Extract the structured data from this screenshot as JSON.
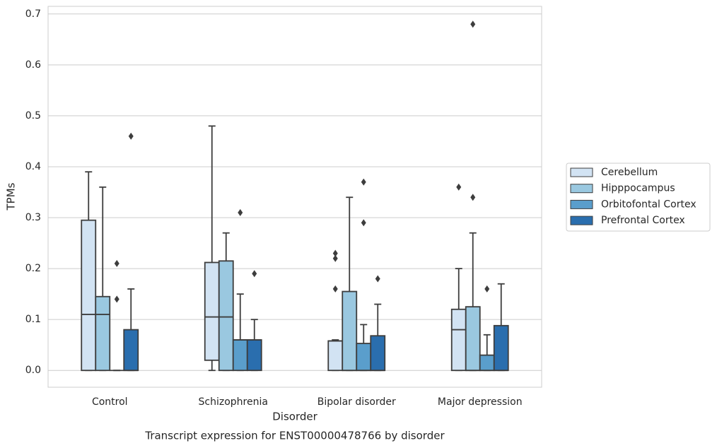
{
  "chart_data": {
    "type": "box",
    "title": "Transcript expression for ENST00000478766 by disorder",
    "xlabel": "Disorder",
    "ylabel": "TPMs",
    "categories": [
      "Control",
      "Schizophrenia",
      "Bipolar disorder",
      "Major depression"
    ],
    "ylim": [
      -0.033,
      0.715
    ],
    "yticks": [
      {
        "value": 0,
        "label": "0.0"
      },
      0.1,
      0.2,
      0.3,
      0.4,
      0.5,
      0.6,
      0.7
    ],
    "grid": true,
    "legend": "right",
    "edge_color": "#3d3d3d",
    "series": [
      {
        "name": "Cerebellum",
        "color": "#d2e3f3",
        "values": [
          {
            "min": 0,
            "q1": 0,
            "median": 0.11,
            "q3": 0.295,
            "max": 0.39,
            "outliers": []
          },
          {
            "min": 0,
            "q1": 0.02,
            "median": 0.105,
            "q3": 0.212,
            "max": 0.48,
            "outliers": []
          },
          {
            "min": 0,
            "q1": 0,
            "median": 0.058,
            "q3": 0.058,
            "max": 0.06,
            "outliers": [
              0.23,
              0.22,
              0.16
            ]
          },
          {
            "min": 0,
            "q1": 0,
            "median": 0.08,
            "q3": 0.12,
            "max": 0.2,
            "outliers": [
              0.36
            ]
          }
        ]
      },
      {
        "name": "Hipppocampus",
        "color": "#9ac8e0",
        "values": [
          {
            "min": 0,
            "q1": 0,
            "median": 0.11,
            "q3": 0.145,
            "max": 0.36,
            "outliers": []
          },
          {
            "min": 0,
            "q1": 0,
            "median": 0.105,
            "q3": 0.215,
            "max": 0.27,
            "outliers": []
          },
          {
            "min": 0,
            "q1": 0,
            "median": 0,
            "q3": 0.155,
            "max": 0.34,
            "outliers": []
          },
          {
            "min": 0,
            "q1": 0,
            "median": 0,
            "q3": 0.125,
            "max": 0.27,
            "outliers": [
              0.34,
              0.68
            ]
          }
        ]
      },
      {
        "name": "Orbitofontal Cortex",
        "color": "#5a9ecc",
        "values": [
          {
            "min": 0,
            "q1": 0,
            "median": 0,
            "q3": 0,
            "max": 0,
            "outliers": [
              0.21,
              0.14
            ]
          },
          {
            "min": 0,
            "q1": 0,
            "median": 0.06,
            "q3": 0.06,
            "max": 0.15,
            "outliers": [
              0.31
            ]
          },
          {
            "min": 0,
            "q1": 0,
            "median": 0,
            "q3": 0.053,
            "max": 0.09,
            "outliers": [
              0.29,
              0.37
            ]
          },
          {
            "min": 0,
            "q1": 0,
            "median": 0,
            "q3": 0.03,
            "max": 0.07,
            "outliers": [
              0.16
            ]
          }
        ]
      },
      {
        "name": "Prefrontal Cortex",
        "color": "#2a6eae",
        "values": [
          {
            "min": 0,
            "q1": 0,
            "median": 0,
            "q3": 0.08,
            "max": 0.16,
            "outliers": [
              0.46
            ]
          },
          {
            "min": 0,
            "q1": 0,
            "median": 0.06,
            "q3": 0.06,
            "max": 0.1,
            "outliers": [
              0.19
            ]
          },
          {
            "min": 0,
            "q1": 0,
            "median": 0,
            "q3": 0.068,
            "max": 0.13,
            "outliers": [
              0.18
            ]
          },
          {
            "min": 0,
            "q1": 0,
            "median": 0,
            "q3": 0.088,
            "max": 0.17,
            "outliers": []
          }
        ]
      }
    ]
  }
}
